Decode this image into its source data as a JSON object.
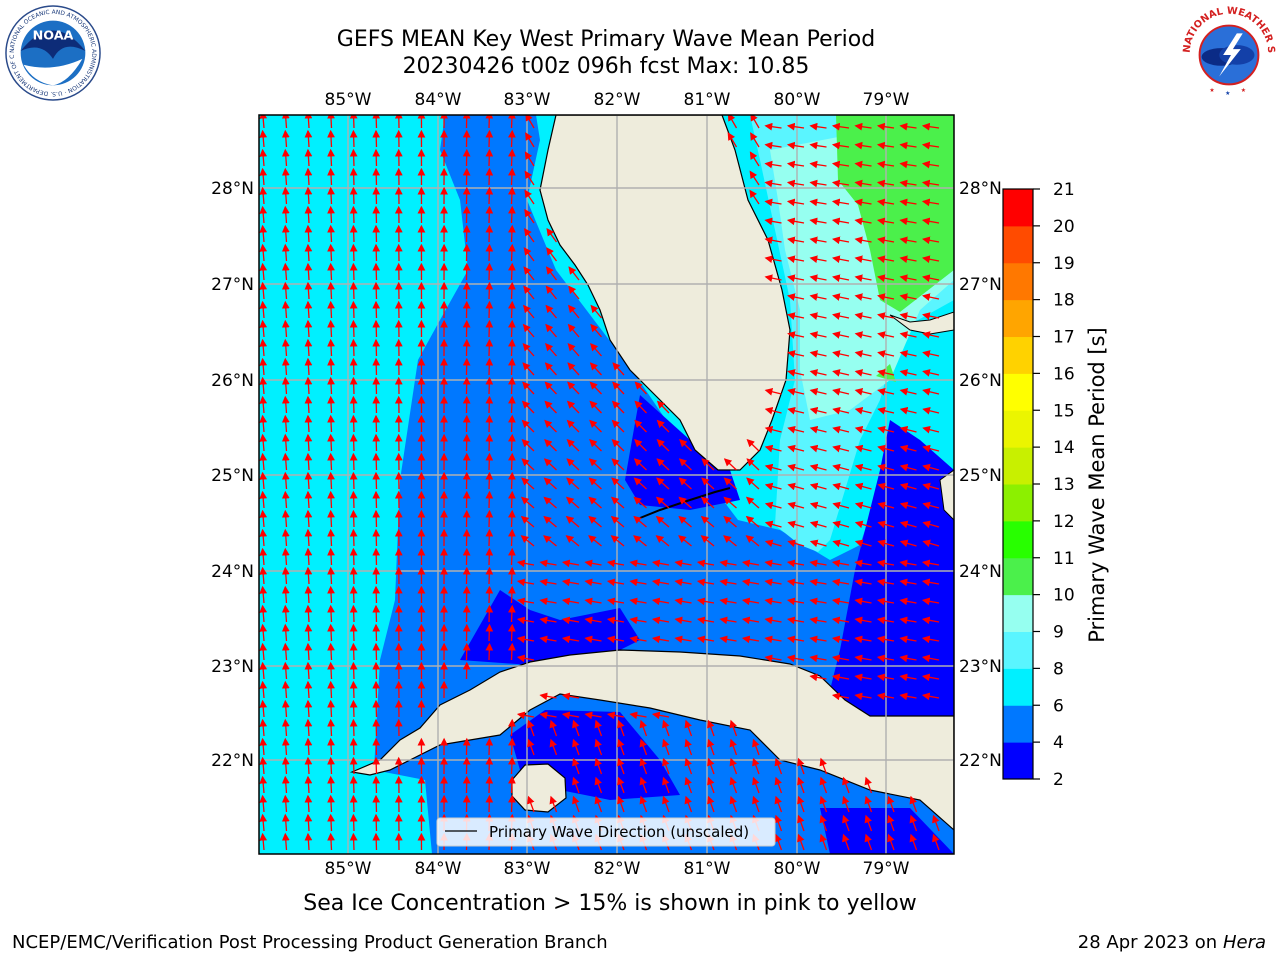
{
  "title": {
    "line1": "GEFS MEAN Key West Primary Wave Mean Period",
    "line2": "20230426 t00z 096h fcst   Max: 10.85"
  },
  "map": {
    "region": "Key West",
    "longitude_labels": [
      "85°W",
      "84°W",
      "83°W",
      "82°W",
      "81°W",
      "80°W",
      "79°W"
    ],
    "latitude_labels": [
      "28°N",
      "27°N",
      "26°N",
      "25°N",
      "24°N",
      "23°N",
      "22°N"
    ],
    "legend_label": "Primary Wave Direction (unscaled)",
    "colors": {
      "land": "#eeecdc",
      "coastline": "#000000",
      "gridline": "#b0b0b0",
      "arrow": "#ff0000"
    }
  },
  "colorbar": {
    "label": "Primary Wave Mean Period [s]",
    "tick_labels": [
      "2",
      "4",
      "6",
      "8",
      "9",
      "10",
      "11",
      "12",
      "13",
      "14",
      "15",
      "16",
      "17",
      "18",
      "19",
      "20",
      "21"
    ],
    "colors": [
      "#0000ff",
      "#0078ff",
      "#00f0ff",
      "#5af5ff",
      "#96fff0",
      "#4bf04b",
      "#28ff00",
      "#8cf000",
      "#c8f000",
      "#ebf500",
      "#ffff00",
      "#ffd200",
      "#ffa500",
      "#ff7800",
      "#ff4b00",
      "#ff0000"
    ]
  },
  "footnote": "Sea Ice Concentration > 15% is shown in pink to yellow",
  "footer": {
    "left": "NCEP/EMC/Verification Post Processing Product Generation Branch",
    "date": "28 Apr 2023 on ",
    "host": "Hera"
  },
  "logos": {
    "noaa_text": "NOAA",
    "noaa_ring": "NATIONAL OCEANIC AND ATMOSPHERIC ADMINISTRATION · U.S. DEPARTMENT OF COMMERCE",
    "nws_ring": "NATIONAL WEATHER SERVICE"
  }
}
